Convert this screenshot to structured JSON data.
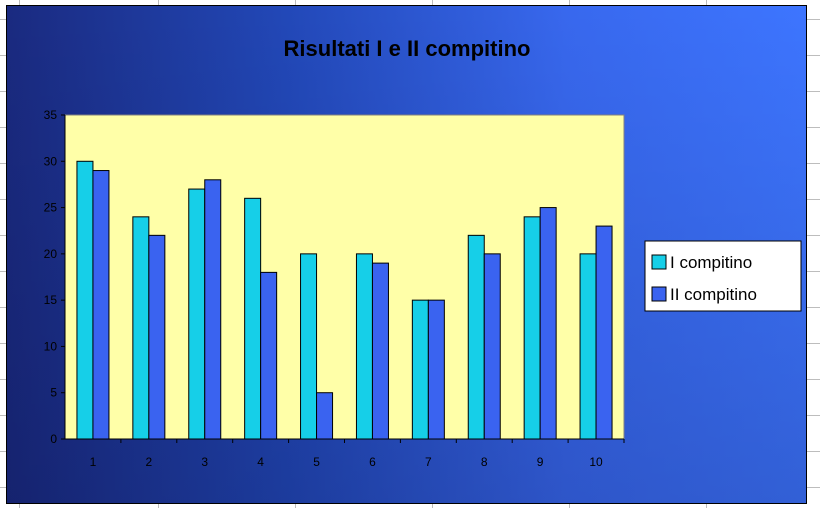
{
  "chart_data": {
    "type": "bar",
    "title": "Risultati I e II compitino",
    "xlabel": "",
    "ylabel": "",
    "categories": [
      "1",
      "2",
      "3",
      "4",
      "5",
      "6",
      "7",
      "8",
      "9",
      "10"
    ],
    "series": [
      {
        "name": "I compitino",
        "values": [
          30,
          24,
          27,
          26,
          20,
          20,
          15,
          22,
          24,
          20
        ],
        "color": "#16cfe8"
      },
      {
        "name": "II compitino",
        "values": [
          29,
          22,
          28,
          18,
          5,
          19,
          15,
          20,
          25,
          23
        ],
        "color": "#3a63f0"
      }
    ],
    "ylim": [
      0,
      35
    ],
    "yticks": [
      "0",
      "5",
      "10",
      "15",
      "20",
      "25",
      "30",
      "35"
    ],
    "grid": false,
    "legend": "right",
    "plot_background": "#ffffa8"
  }
}
